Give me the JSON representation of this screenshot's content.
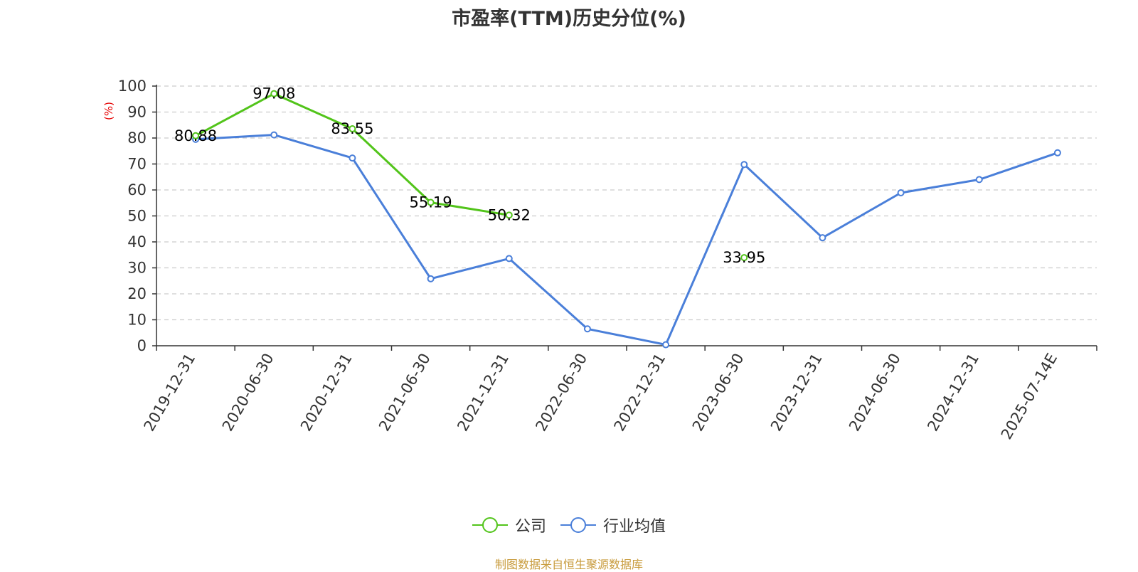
{
  "title": "市盈率(TTM)历史分位(%)",
  "source_text": "制图数据来自恒生聚源数据库",
  "colors": {
    "company": "#52c41a",
    "industry": "#4a7fd9",
    "unit": "#e60000",
    "source": "#c89b3c"
  },
  "chart_data": {
    "type": "line",
    "title": "市盈率(TTM)历史分位(%)",
    "ylabel": "(%)",
    "ylim": [
      0,
      100
    ],
    "yticks": [
      0,
      10,
      20,
      30,
      40,
      50,
      60,
      70,
      80,
      90,
      100
    ],
    "grid": true,
    "legend_position": "bottom",
    "categories": [
      "2019-12-31",
      "2020-06-30",
      "2020-12-31",
      "2021-06-30",
      "2021-12-31",
      "2022-06-30",
      "2022-12-31",
      "2023-06-30",
      "2023-12-31",
      "2024-06-30",
      "2024-12-31",
      "2025-07-14E"
    ],
    "series": [
      {
        "name": "公司",
        "color": "#52c41a",
        "show_labels": true,
        "values": [
          80.88,
          97.08,
          83.55,
          55.19,
          50.32,
          null,
          null,
          33.95,
          null,
          null,
          null,
          null
        ]
      },
      {
        "name": "行业均值",
        "color": "#4a7fd9",
        "show_labels": false,
        "values": [
          79.5,
          81.2,
          72.3,
          25.8,
          33.6,
          6.5,
          0.4,
          69.8,
          41.6,
          58.9,
          64.0,
          74.3
        ]
      }
    ]
  }
}
